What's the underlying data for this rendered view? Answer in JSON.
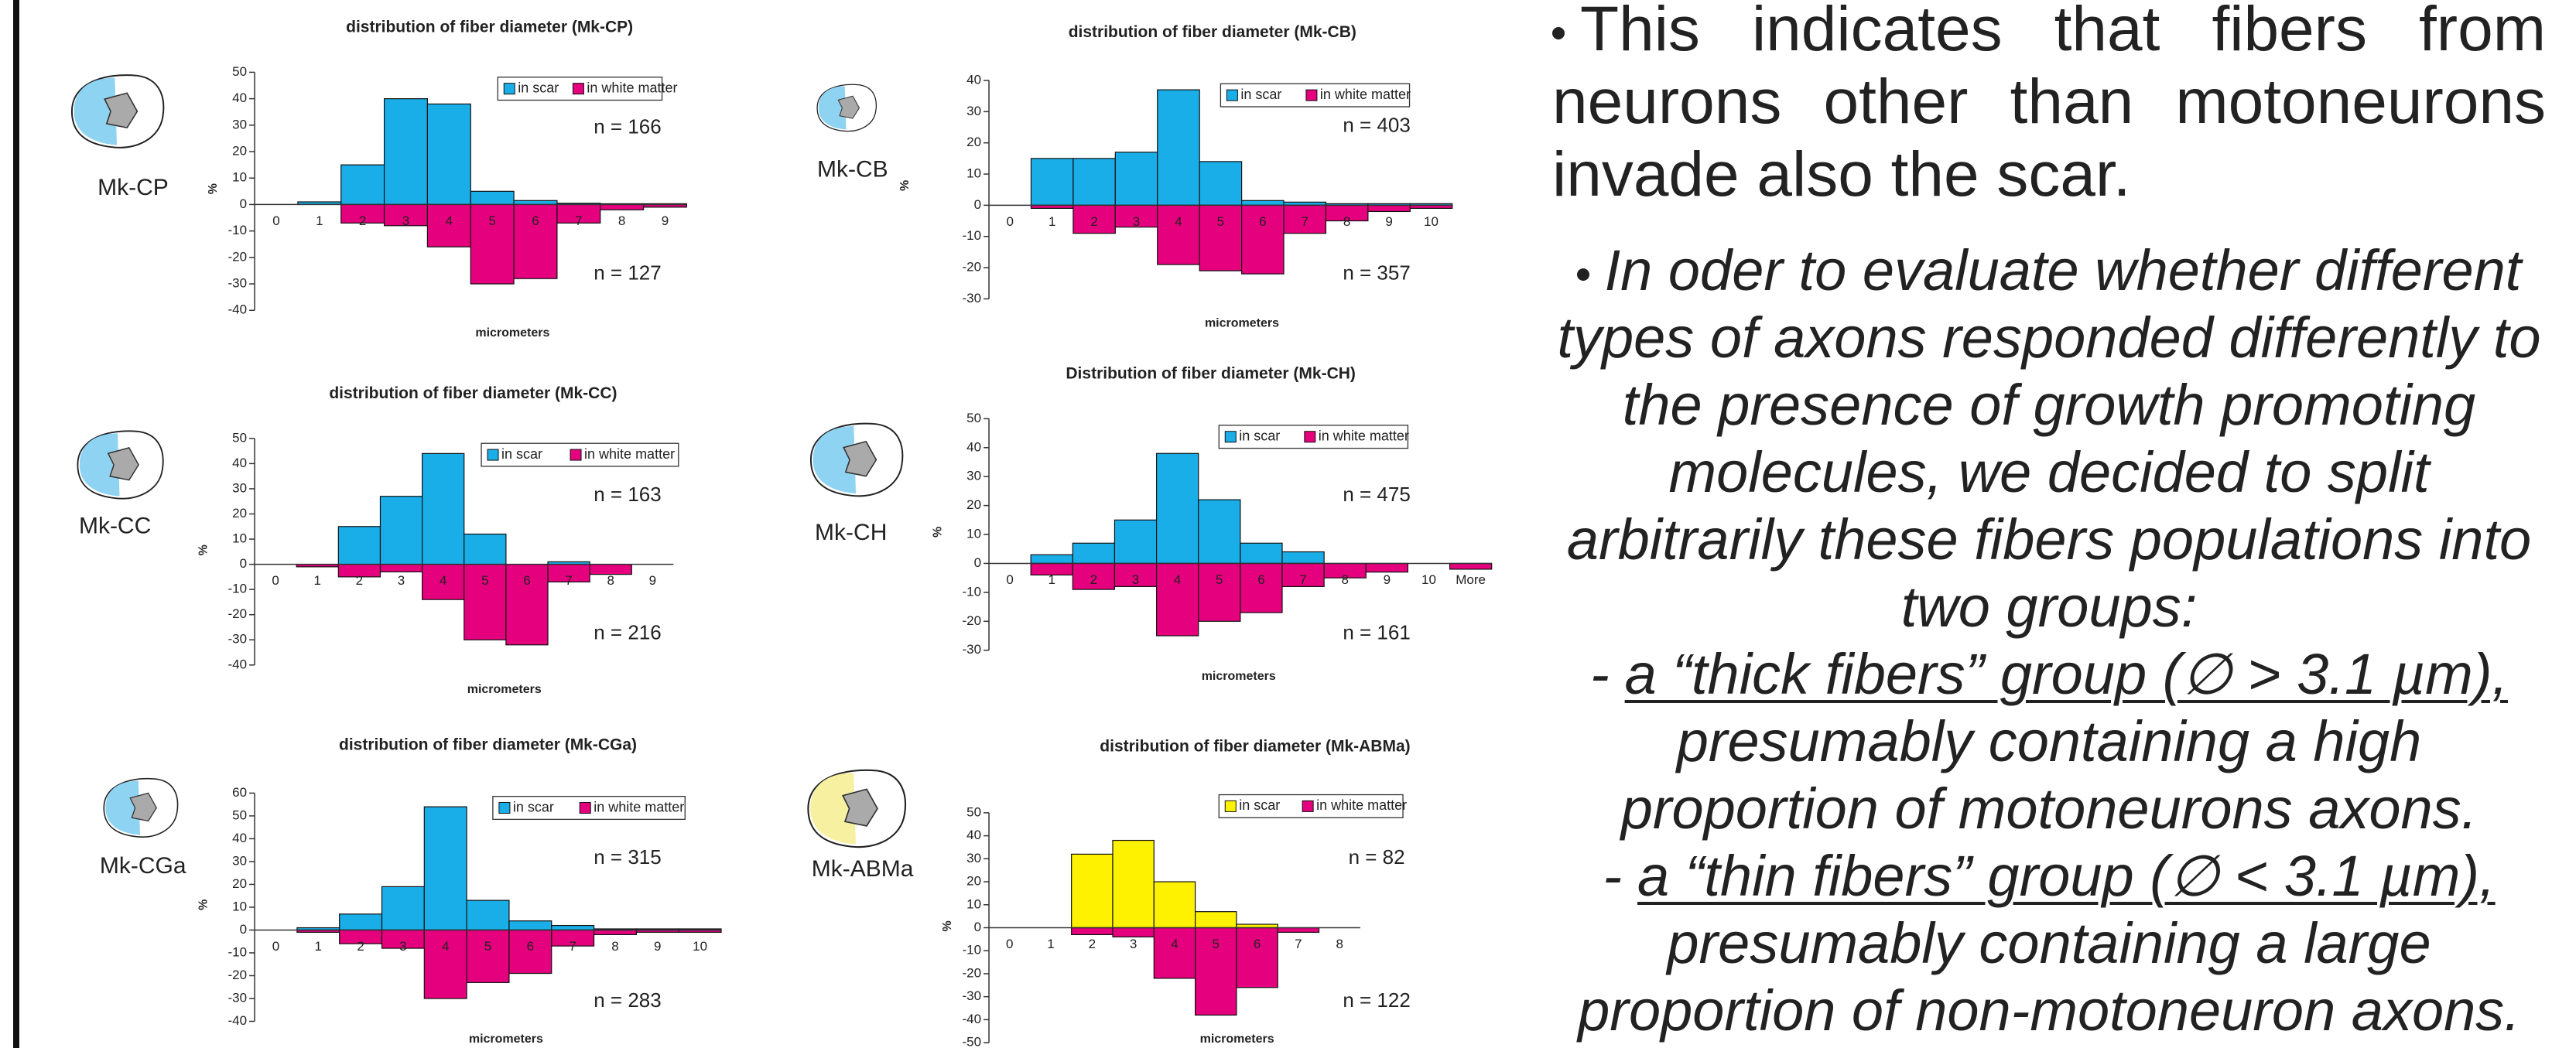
{
  "chart_data": [
    {
      "type": "bar",
      "title": "distribution of fiber diameter (Mk-CP)",
      "specimen": "Mk-CP",
      "categories": [
        "0",
        "1",
        "2",
        "3",
        "4",
        "5",
        "6",
        "7",
        "8",
        "9"
      ],
      "series": [
        {
          "name": "in scar",
          "color": "#1aaee8",
          "values": [
            0,
            1,
            15,
            40,
            38,
            5,
            1.5,
            0.5,
            0.3,
            0.3
          ]
        },
        {
          "name": "in white matter",
          "color": "#e5007d",
          "values": [
            0,
            0,
            -7,
            -8,
            -16,
            -30,
            -28,
            -7,
            -2,
            -1
          ]
        }
      ],
      "ylim": [
        -40,
        50
      ],
      "yticks": [
        -40,
        -30,
        -20,
        -10,
        0,
        10,
        20,
        30,
        40,
        50
      ],
      "x_label": "micrometers",
      "y_label": "%",
      "annotations": [
        "n = 166",
        "n = 127"
      ]
    },
    {
      "type": "bar",
      "title": "distribution of fiber diameter (Mk-CB)",
      "specimen": "Mk-CB",
      "categories": [
        "0",
        "1",
        "2",
        "3",
        "4",
        "5",
        "6",
        "7",
        "8",
        "9",
        "10"
      ],
      "series": [
        {
          "name": "in scar",
          "color": "#1aaee8",
          "values": [
            0,
            15,
            15,
            17,
            37,
            14,
            1.5,
            1,
            0.5,
            0.5,
            0.5
          ]
        },
        {
          "name": "in white matter",
          "color": "#e5007d",
          "values": [
            0,
            -1,
            -9,
            -7,
            -19,
            -21,
            -22,
            -9,
            -5,
            -2,
            -1
          ]
        }
      ],
      "ylim": [
        -30,
        40
      ],
      "yticks": [
        -30,
        -20,
        -10,
        0,
        10,
        20,
        30,
        40
      ],
      "x_label": "micrometers",
      "y_label": "%",
      "annotations": [
        "n = 403",
        "n = 357"
      ]
    },
    {
      "type": "bar",
      "title": "distribution of fiber diameter (Mk-CC)",
      "specimen": "Mk-CC",
      "categories": [
        "0",
        "1",
        "2",
        "3",
        "4",
        "5",
        "6",
        "7",
        "8",
        "9"
      ],
      "series": [
        {
          "name": "in scar",
          "color": "#1aaee8",
          "values": [
            0,
            0,
            15,
            27,
            44,
            12,
            0,
            1,
            0,
            0
          ]
        },
        {
          "name": "in white matter",
          "color": "#e5007d",
          "values": [
            0,
            -1,
            -5,
            -3,
            -14,
            -30,
            -32,
            -7,
            -4,
            0
          ]
        }
      ],
      "ylim": [
        -40,
        50
      ],
      "yticks": [
        -40,
        -30,
        -20,
        -10,
        0,
        10,
        20,
        30,
        40,
        50
      ],
      "x_label": "micrometers",
      "y_label": "%",
      "annotations": [
        "n = 163",
        "n = 216"
      ]
    },
    {
      "type": "bar",
      "title": "Distribution of fiber diameter (Mk-CH)",
      "specimen": "Mk-CH",
      "categories": [
        "0",
        "1",
        "2",
        "3",
        "4",
        "5",
        "6",
        "7",
        "8",
        "9",
        "10",
        "More"
      ],
      "series": [
        {
          "name": "in scar",
          "color": "#1aaee8",
          "values": [
            0,
            3,
            7,
            15,
            38,
            22,
            7,
            4,
            0,
            0,
            0,
            0
          ]
        },
        {
          "name": "in white matter",
          "color": "#e5007d",
          "values": [
            0,
            -4,
            -9,
            -8,
            -25,
            -20,
            -17,
            -8,
            -5,
            -3,
            0,
            -2
          ]
        }
      ],
      "ylim": [
        -30,
        50
      ],
      "yticks": [
        -30,
        -20,
        -10,
        0,
        10,
        20,
        30,
        40,
        50
      ],
      "x_label": "micrometers",
      "y_label": "%",
      "annotations": [
        "n = 475",
        "n = 161"
      ]
    },
    {
      "type": "bar",
      "title": "distribution of fiber diameter (Mk-CGa)",
      "specimen": "Mk-CGa",
      "categories": [
        "0",
        "1",
        "2",
        "3",
        "4",
        "5",
        "6",
        "7",
        "8",
        "9",
        "10"
      ],
      "series": [
        {
          "name": "in scar",
          "color": "#1aaee8",
          "values": [
            0,
            1,
            7,
            19,
            54,
            13,
            4,
            2,
            0.5,
            0.5,
            0.5
          ]
        },
        {
          "name": "in white matter",
          "color": "#e5007d",
          "values": [
            0,
            -1,
            -6,
            -8,
            -30,
            -23,
            -19,
            -7,
            -2,
            -1,
            -1
          ]
        }
      ],
      "ylim": [
        -40,
        60
      ],
      "yticks": [
        -40,
        -30,
        -20,
        -10,
        0,
        10,
        20,
        30,
        40,
        50,
        60
      ],
      "x_label": "micrometers",
      "y_label": "%",
      "annotations": [
        "n = 315",
        "n = 283"
      ]
    },
    {
      "type": "bar",
      "title": "distribution of fiber diameter (Mk-ABMa)",
      "specimen": "Mk-ABMa",
      "categories": [
        "0",
        "1",
        "2",
        "3",
        "4",
        "5",
        "6",
        "7",
        "8"
      ],
      "series": [
        {
          "name": "in scar",
          "color": "#fff200",
          "values": [
            0,
            0,
            32,
            38,
            20,
            7,
            1.5,
            0,
            0
          ]
        },
        {
          "name": "in white matter",
          "color": "#e5007d",
          "values": [
            0,
            0,
            -3,
            -4,
            -22,
            -38,
            -26,
            -2,
            0
          ]
        }
      ],
      "ylim": [
        -50,
        50
      ],
      "yticks": [
        -50,
        -40,
        -30,
        -20,
        -10,
        0,
        10,
        20,
        30,
        40,
        50
      ],
      "x_label": "micrometers",
      "y_label": "%",
      "annotations": [
        "n = 82",
        "n = 122"
      ]
    }
  ],
  "text": {
    "paragraph_1": "This indicates that fibers from neurons other than motoneurons invade also the scar.",
    "paragraph_2": "In oder to evaluate whether different types of axons responded differently to the presence of growth promoting molecules, we decided to split arbitrarily these fibers populations into two groups:",
    "groups": [
      {
        "prefix": "-",
        "name": "a “thick fibers” group (∅ > 3.1 µm),",
        "description": "presumably containing a high proportion of motoneurons axons."
      },
      {
        "prefix": "-",
        "name": "a “thin fibers” group (∅ < 3.1 µm),",
        "description": "presumably containing a large proportion of non-motoneuron axons."
      }
    ]
  }
}
